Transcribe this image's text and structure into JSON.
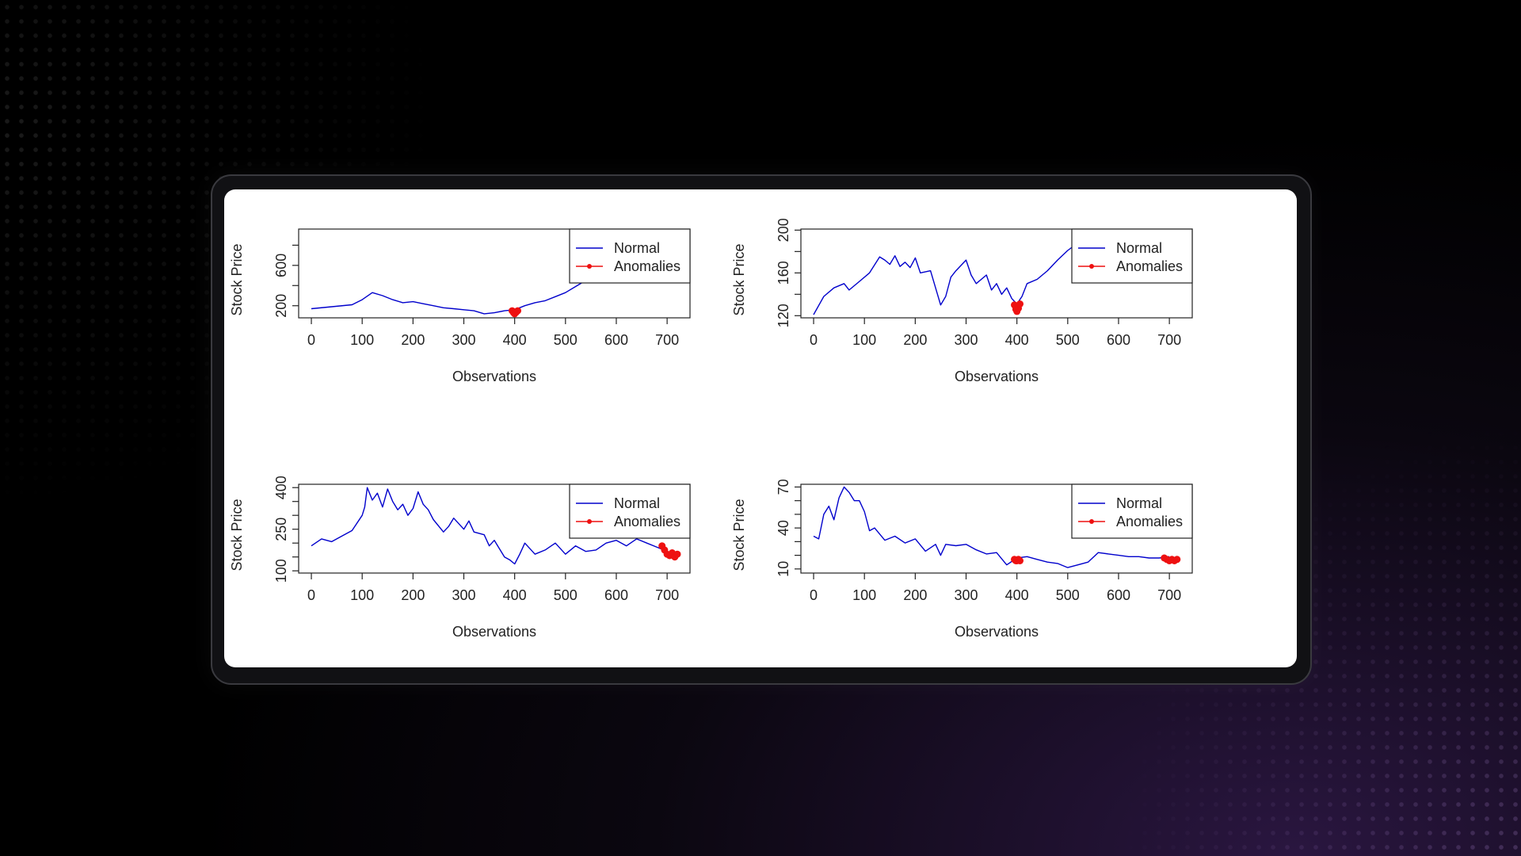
{
  "colors": {
    "normal": "#0000cc",
    "anomaly": "#ee1111",
    "axis": "#222222"
  },
  "chart_data": [
    {
      "type": "line",
      "xlabel": "Observations",
      "ylabel": "Stock Price",
      "xlim": [
        -25,
        745
      ],
      "ylim": [
        80,
        960
      ],
      "xticks": [
        "0",
        "100",
        "200",
        "300",
        "400",
        "500",
        "600",
        "700"
      ],
      "yticks": [
        "200",
        "400",
        "600",
        "800"
      ],
      "ytick_labels": [
        "200",
        "",
        "600",
        ""
      ],
      "legend": {
        "position": "top-right",
        "entries": [
          "Normal",
          "Anomalies"
        ]
      },
      "series": [
        {
          "name": "Normal",
          "x": [
            0,
            40,
            80,
            100,
            120,
            140,
            160,
            180,
            200,
            220,
            240,
            260,
            280,
            300,
            320,
            340,
            360,
            380,
            400,
            420,
            440,
            460,
            480,
            500,
            520,
            540,
            560,
            580,
            600,
            620,
            640,
            660,
            680,
            700
          ],
          "y": [
            170,
            190,
            210,
            260,
            330,
            300,
            260,
            230,
            240,
            220,
            200,
            180,
            170,
            160,
            150,
            120,
            130,
            150,
            160,
            200,
            230,
            250,
            290,
            330,
            390,
            450,
            460,
            470,
            480,
            460,
            440,
            460,
            450,
            470
          ]
        },
        {
          "name": "Anomalies",
          "x": [
            395,
            398,
            400,
            403,
            406
          ],
          "y": [
            150,
            130,
            120,
            135,
            150
          ]
        }
      ]
    },
    {
      "type": "line",
      "xlabel": "Observations",
      "ylabel": "Stock Price",
      "xlim": [
        -25,
        745
      ],
      "ylim": [
        118,
        201
      ],
      "xticks": [
        "0",
        "100",
        "200",
        "300",
        "400",
        "500",
        "600",
        "700"
      ],
      "yticks": [
        "120",
        "140",
        "160",
        "180",
        "200"
      ],
      "ytick_labels": [
        "120",
        "",
        "160",
        "",
        "200"
      ],
      "legend": {
        "position": "top-right",
        "entries": [
          "Normal",
          "Anomalies"
        ]
      },
      "series": [
        {
          "name": "Normal",
          "x": [
            0,
            20,
            40,
            60,
            70,
            90,
            110,
            130,
            140,
            150,
            160,
            170,
            180,
            190,
            200,
            210,
            230,
            250,
            260,
            270,
            280,
            300,
            310,
            320,
            340,
            350,
            360,
            370,
            380,
            390,
            400,
            410,
            420,
            440,
            460,
            480,
            500,
            520,
            540,
            560,
            580,
            600,
            620,
            640,
            660,
            680,
            700
          ],
          "y": [
            121,
            138,
            146,
            150,
            144,
            152,
            160,
            175,
            172,
            168,
            176,
            166,
            170,
            165,
            174,
            160,
            162,
            130,
            138,
            156,
            162,
            172,
            158,
            150,
            158,
            144,
            150,
            140,
            146,
            136,
            131,
            138,
            150,
            154,
            162,
            172,
            181,
            188,
            184,
            182,
            180,
            183,
            181,
            184,
            182,
            181,
            183
          ]
        },
        {
          "name": "Anomalies",
          "x": [
            395,
            398,
            400,
            403,
            406
          ],
          "y": [
            130,
            126,
            124,
            127,
            131
          ]
        }
      ]
    },
    {
      "type": "line",
      "xlabel": "Observations",
      "ylabel": "Stock Price",
      "xlim": [
        -25,
        745
      ],
      "ylim": [
        92,
        412
      ],
      "xticks": [
        "0",
        "100",
        "200",
        "300",
        "400",
        "500",
        "600",
        "700"
      ],
      "yticks": [
        "100",
        "150",
        "200",
        "250",
        "300",
        "350",
        "400"
      ],
      "ytick_labels": [
        "100",
        "",
        "",
        "250",
        "",
        "",
        "400"
      ],
      "legend": {
        "position": "top-right",
        "entries": [
          "Normal",
          "Anomalies"
        ]
      },
      "series": [
        {
          "name": "Normal",
          "x": [
            0,
            20,
            40,
            60,
            80,
            100,
            105,
            110,
            120,
            130,
            140,
            150,
            160,
            170,
            180,
            190,
            200,
            210,
            220,
            230,
            240,
            260,
            270,
            280,
            300,
            310,
            320,
            340,
            350,
            360,
            370,
            380,
            390,
            400,
            410,
            420,
            440,
            460,
            480,
            500,
            520,
            540,
            560,
            580,
            600,
            620,
            640,
            660,
            680,
            700
          ],
          "y": [
            190,
            215,
            205,
            225,
            245,
            300,
            330,
            400,
            355,
            380,
            330,
            395,
            350,
            320,
            340,
            300,
            325,
            385,
            340,
            320,
            285,
            240,
            260,
            290,
            250,
            280,
            240,
            230,
            190,
            210,
            180,
            150,
            140,
            125,
            160,
            200,
            160,
            175,
            200,
            160,
            190,
            170,
            175,
            200,
            210,
            190,
            215,
            200,
            185,
            170
          ]
        },
        {
          "name": "Anomalies",
          "x": [
            690,
            695,
            700,
            705,
            710,
            715,
            720
          ],
          "y": [
            190,
            175,
            160,
            155,
            165,
            150,
            160
          ]
        }
      ]
    },
    {
      "type": "line",
      "xlabel": "Observations",
      "ylabel": "Stock Price",
      "xlim": [
        -25,
        745
      ],
      "ylim": [
        7,
        72
      ],
      "xticks": [
        "0",
        "100",
        "200",
        "300",
        "400",
        "500",
        "600",
        "700"
      ],
      "yticks": [
        "10",
        "20",
        "30",
        "40",
        "50",
        "60",
        "70"
      ],
      "ytick_labels": [
        "10",
        "",
        "",
        "40",
        "",
        "",
        "70"
      ],
      "legend": {
        "position": "top-right",
        "entries": [
          "Normal",
          "Anomalies"
        ]
      },
      "series": [
        {
          "name": "Normal",
          "x": [
            0,
            10,
            20,
            30,
            40,
            50,
            60,
            70,
            80,
            90,
            100,
            110,
            120,
            140,
            160,
            180,
            200,
            220,
            240,
            250,
            260,
            280,
            300,
            320,
            340,
            360,
            380,
            400,
            420,
            440,
            460,
            480,
            500,
            520,
            540,
            560,
            580,
            600,
            620,
            640,
            660,
            680,
            700
          ],
          "y": [
            34,
            32,
            50,
            56,
            46,
            62,
            70,
            66,
            60,
            60,
            52,
            38,
            40,
            31,
            34,
            29,
            32,
            23,
            28,
            20,
            28,
            27,
            28,
            24,
            21,
            22,
            13,
            18,
            19,
            17,
            15,
            14,
            11,
            13,
            15,
            22,
            21,
            20,
            19,
            19,
            18,
            18,
            19
          ]
        },
        {
          "name": "Anomalies",
          "x": [
            395,
            398,
            400,
            403,
            406,
            690,
            695,
            700,
            705,
            710,
            715
          ],
          "y": [
            17,
            16,
            16,
            17,
            16,
            18,
            17,
            16,
            17,
            16,
            17
          ]
        }
      ]
    }
  ]
}
